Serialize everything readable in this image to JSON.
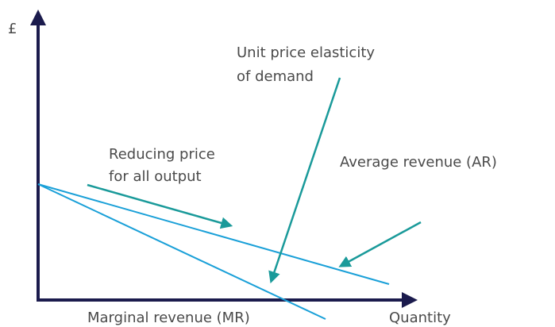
{
  "y_axis_label": "£",
  "x_axis_label": "Quantity",
  "annotations": {
    "elasticity_line1": "Unit price elasticity",
    "elasticity_line2": "of demand",
    "reducing_line1": "Reducing price",
    "reducing_line2": "for all output",
    "average_revenue": "Average revenue (AR)",
    "marginal_revenue": "Marginal revenue (MR)"
  }
}
